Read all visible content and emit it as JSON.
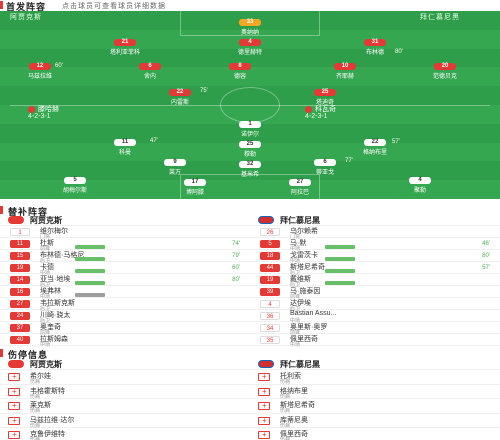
{
  "header": {
    "title": "首发阵容",
    "subtitle": "点击球员可查看球员详细数据"
  },
  "pitch": {
    "home_tag": "阿贾克斯",
    "away_tag": "拜仁慕尼黑",
    "home_formation": "4-2-3-1",
    "away_formation": "4-2-3-1",
    "home_coach": "滕哈赫",
    "away_coach": "科瓦奇",
    "home_players": [
      {
        "num": "33",
        "name": "奥纳纳",
        "type": "keeper"
      },
      {
        "num": "21",
        "name": "塔利亚菲科",
        "type": "home"
      },
      {
        "num": "4",
        "name": "德里赫特",
        "type": "home"
      },
      {
        "num": "31",
        "name": "布林德",
        "type": "home"
      },
      {
        "num": "12",
        "name": "马兹拉维",
        "type": "home"
      },
      {
        "num": "6",
        "name": "舍内",
        "type": "home"
      },
      {
        "num": "8",
        "name": "德容",
        "type": "home"
      },
      {
        "num": "10",
        "name": "齐耶赫",
        "type": "home"
      },
      {
        "num": "20",
        "name": "范德贝克",
        "type": "home"
      },
      {
        "num": "22",
        "name": "内雷斯",
        "type": "home"
      },
      {
        "num": "25",
        "name": "塔迪奇",
        "type": "home"
      }
    ],
    "away_players": [
      {
        "num": "1",
        "name": "诺伊尔",
        "type": "white"
      },
      {
        "num": "11",
        "name": "科曼",
        "type": "white"
      },
      {
        "num": "25",
        "name": "穆勒",
        "type": "white"
      },
      {
        "num": "22",
        "name": "格纳布里",
        "type": "white"
      },
      {
        "num": "9",
        "name": "莱万",
        "type": "white"
      },
      {
        "num": "32",
        "name": "基米希",
        "type": "white"
      },
      {
        "num": "6",
        "name": "蒂亚戈",
        "type": "white"
      },
      {
        "num": "5",
        "name": "胡梅尔斯",
        "type": "white"
      },
      {
        "num": "17",
        "name": "博阿滕",
        "type": "white"
      },
      {
        "num": "27",
        "name": "阿拉巴",
        "type": "white"
      },
      {
        "num": "4",
        "name": "聚勒",
        "type": "white"
      }
    ],
    "events": [
      "60'",
      "75'",
      "80'",
      "47'",
      "77'",
      "57'"
    ]
  },
  "subs": {
    "title": "替补阵容",
    "home_team": "阿贾克斯",
    "away_team": "拜仁慕尼黑",
    "home": [
      {
        "num": "1",
        "name": "维尔梅尔",
        "pos": "门将",
        "time": ""
      },
      {
        "num": "11",
        "name": "杜斯",
        "pos": "前锋",
        "time": "74'"
      },
      {
        "num": "15",
        "name": "布林德·马格尼",
        "pos": "后卫",
        "time": "79'"
      },
      {
        "num": "19",
        "name": "卡德",
        "pos": "中场",
        "time": "60'"
      },
      {
        "num": "14",
        "name": "亚当·地埃",
        "pos": "后卫",
        "time": "80'"
      },
      {
        "num": "16",
        "name": "埃弗林",
        "pos": "中场",
        "time": ""
      },
      {
        "num": "27",
        "name": "韦拉斯克斯",
        "pos": "后卫",
        "time": ""
      },
      {
        "num": "24",
        "name": "川崎·骁太",
        "pos": "后卫",
        "time": ""
      },
      {
        "num": "37",
        "name": "奥奎奇",
        "pos": "前锋",
        "time": ""
      },
      {
        "num": "40",
        "name": "拉斯姆森",
        "pos": "中场",
        "time": ""
      }
    ],
    "away": [
      {
        "num": "26",
        "name": "乌尔赖希",
        "pos": "门将",
        "time": ""
      },
      {
        "num": "5",
        "name": "马·默",
        "pos": "中场",
        "time": "46'"
      },
      {
        "num": "18",
        "name": "戈雷茨卡",
        "pos": "中场",
        "time": "80'"
      },
      {
        "num": "44",
        "name": "斯塔尼希奇",
        "pos": "后卫",
        "time": "57'"
      },
      {
        "num": "19",
        "name": "戴维斯",
        "pos": "后卫",
        "time": ""
      },
      {
        "num": "39",
        "name": "马·施泰因",
        "pos": "前锋",
        "time": ""
      },
      {
        "num": "4",
        "name": "达伊埃",
        "pos": "后卫",
        "time": ""
      },
      {
        "num": "36",
        "name": "Bastian Assu...",
        "pos": "中场",
        "time": ""
      },
      {
        "num": "34",
        "name": "奥里斯·奥罗",
        "pos": "前锋",
        "time": ""
      },
      {
        "num": "35",
        "name": "佩里西奇",
        "pos": "中场",
        "time": ""
      }
    ]
  },
  "injuries": {
    "title": "伤停信息",
    "home_team": "阿贾克斯",
    "away_team": "拜仁慕尼黑",
    "home": [
      {
        "name": "希尔娃",
        "pos": "伤病"
      },
      {
        "name": "韦格霍斯特",
        "pos": "伤病"
      },
      {
        "name": "莱克斯",
        "pos": "伤病"
      },
      {
        "name": "马兹拉维·达尔",
        "pos": "伤病"
      },
      {
        "name": "克鲁伊维特",
        "pos": "伤病"
      }
    ],
    "away": [
      {
        "name": "托利索",
        "pos": "伤病"
      },
      {
        "name": "格纳布里",
        "pos": "伤病"
      },
      {
        "name": "斯塔尼希奇",
        "pos": "伤病"
      },
      {
        "name": "库蒂尼奥",
        "pos": "伤病"
      },
      {
        "name": "佩里西奇",
        "pos": "伤病"
      }
    ]
  }
}
